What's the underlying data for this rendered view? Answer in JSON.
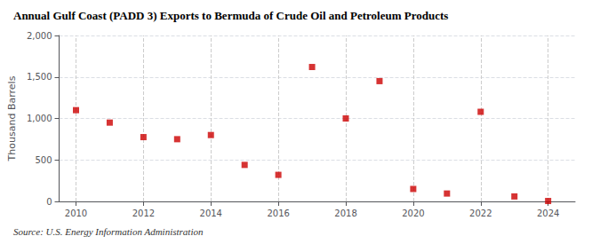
{
  "chart_data": {
    "type": "scatter",
    "title": "Annual Gulf Coast (PADD 3) Exports to Bermuda of Crude Oil and Petroleum Products",
    "ylabel": "Thousand Barrels",
    "annotations": [
      "Source: U.S. Energy Information Administration"
    ],
    "x": [
      2010,
      2011,
      2012,
      2013,
      2014,
      2015,
      2016,
      2017,
      2018,
      2019,
      2020,
      2021,
      2022,
      2023,
      2024
    ],
    "values": [
      1100,
      950,
      775,
      750,
      800,
      440,
      320,
      1620,
      1000,
      1450,
      150,
      95,
      1080,
      60,
      5
    ],
    "color": "#cc0000",
    "marker": "square",
    "xlim": [
      2009.5,
      2024.8
    ],
    "xticks": [
      2010,
      2012,
      2014,
      2016,
      2018,
      2020,
      2022,
      2024
    ],
    "ylim": [
      0,
      2000
    ],
    "yticks": [
      0,
      500,
      {
        "value": 1000,
        "label": "1,000"
      },
      {
        "value": 1500,
        "label": "1,500"
      },
      {
        "value": 2000,
        "label": "2,000"
      }
    ],
    "grid": true
  }
}
